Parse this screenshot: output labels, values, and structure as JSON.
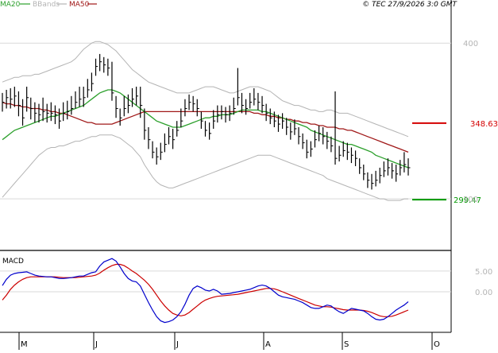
{
  "header": {
    "legend": [
      {
        "label": "MA20",
        "color": "#2ca02c"
      },
      {
        "label": "BBands",
        "color": "#b4b4b4"
      },
      {
        "label": "MA50",
        "color": "#a01818"
      }
    ],
    "copyright": "© TEC 27/9/2026 3:0 GMT"
  },
  "price_panel": {
    "y_ticks": [
      {
        "value": 400,
        "label": "400"
      },
      {
        "value": 300,
        "label": "300"
      }
    ],
    "levels": [
      {
        "value": 348.63,
        "label": "348.63",
        "color": "#d40000"
      },
      {
        "value": 299.47,
        "label": "299.47",
        "color": "#009900"
      }
    ]
  },
  "macd_panel": {
    "label": "MACD",
    "y_ticks": [
      {
        "value": 5,
        "label": "5.00"
      },
      {
        "value": 0,
        "label": "0.00"
      }
    ]
  },
  "x_axis": {
    "months": [
      "M",
      "J",
      "J",
      "A",
      "S",
      "O"
    ]
  },
  "chart_data": {
    "type": "line",
    "title": "",
    "xlabel": "",
    "ylabel": "",
    "price_ylim": [
      272,
      420
    ],
    "macd_ylim": [
      -9,
      9
    ],
    "months": [
      "M",
      "J",
      "J",
      "A",
      "S",
      "O"
    ],
    "price": [
      {
        "close": 362,
        "high": 368,
        "low": 356
      },
      {
        "close": 365,
        "high": 370,
        "low": 358
      },
      {
        "close": 364,
        "high": 371,
        "low": 358
      },
      {
        "close": 366,
        "high": 372,
        "low": 359
      },
      {
        "close": 360,
        "high": 369,
        "low": 353
      },
      {
        "close": 352,
        "high": 364,
        "low": 347
      },
      {
        "close": 365,
        "high": 372,
        "low": 356
      },
      {
        "close": 358,
        "high": 365,
        "low": 351
      },
      {
        "close": 355,
        "high": 362,
        "low": 349
      },
      {
        "close": 354,
        "high": 361,
        "low": 349
      },
      {
        "close": 356,
        "high": 365,
        "low": 350
      },
      {
        "close": 355,
        "high": 361,
        "low": 349
      },
      {
        "close": 355,
        "high": 362,
        "low": 350
      },
      {
        "close": 354,
        "high": 360,
        "low": 348
      },
      {
        "close": 350,
        "high": 358,
        "low": 345
      },
      {
        "close": 355,
        "high": 362,
        "low": 350
      },
      {
        "close": 356,
        "high": 363,
        "low": 351
      },
      {
        "close": 358,
        "high": 366,
        "low": 354
      },
      {
        "close": 362,
        "high": 369,
        "low": 358
      },
      {
        "close": 364,
        "high": 372,
        "low": 359
      },
      {
        "close": 365,
        "high": 372,
        "low": 359
      },
      {
        "close": 370,
        "high": 377,
        "low": 365
      },
      {
        "close": 374,
        "high": 381,
        "low": 369
      },
      {
        "close": 385,
        "high": 390,
        "low": 379
      },
      {
        "close": 388,
        "high": 393,
        "low": 382
      },
      {
        "close": 386,
        "high": 391,
        "low": 381
      },
      {
        "close": 384,
        "high": 390,
        "low": 379
      },
      {
        "close": 368,
        "high": 388,
        "low": 363
      },
      {
        "close": 358,
        "high": 366,
        "low": 352
      },
      {
        "close": 352,
        "high": 358,
        "low": 347
      },
      {
        "close": 358,
        "high": 366,
        "low": 353
      },
      {
        "close": 360,
        "high": 367,
        "low": 355
      },
      {
        "close": 364,
        "high": 371,
        "low": 359
      },
      {
        "close": 366,
        "high": 372,
        "low": 360
      },
      {
        "close": 360,
        "high": 372,
        "low": 352
      },
      {
        "close": 344,
        "high": 358,
        "low": 338
      },
      {
        "close": 338,
        "high": 346,
        "low": 332
      },
      {
        "close": 330,
        "high": 337,
        "low": 326
      },
      {
        "close": 327,
        "high": 333,
        "low": 322
      },
      {
        "close": 330,
        "high": 336,
        "low": 325
      },
      {
        "close": 335,
        "high": 342,
        "low": 330
      },
      {
        "close": 340,
        "high": 346,
        "low": 335
      },
      {
        "close": 338,
        "high": 345,
        "low": 332
      },
      {
        "close": 344,
        "high": 350,
        "low": 340
      },
      {
        "close": 350,
        "high": 358,
        "low": 346
      },
      {
        "close": 358,
        "high": 364,
        "low": 353
      },
      {
        "close": 362,
        "high": 367,
        "low": 357
      },
      {
        "close": 361,
        "high": 366,
        "low": 356
      },
      {
        "close": 358,
        "high": 364,
        "low": 353
      },
      {
        "close": 350,
        "high": 356,
        "low": 345
      },
      {
        "close": 344,
        "high": 350,
        "low": 340
      },
      {
        "close": 342,
        "high": 349,
        "low": 338
      },
      {
        "close": 350,
        "high": 357,
        "low": 345
      },
      {
        "close": 354,
        "high": 360,
        "low": 349
      },
      {
        "close": 356,
        "high": 360,
        "low": 351
      },
      {
        "close": 354,
        "high": 359,
        "low": 349
      },
      {
        "close": 355,
        "high": 360,
        "low": 350
      },
      {
        "close": 358,
        "high": 365,
        "low": 354
      },
      {
        "close": 365,
        "high": 384,
        "low": 360
      },
      {
        "close": 360,
        "high": 368,
        "low": 355
      },
      {
        "close": 358,
        "high": 364,
        "low": 354
      },
      {
        "close": 362,
        "high": 368,
        "low": 358
      },
      {
        "close": 364,
        "high": 371,
        "low": 360
      },
      {
        "close": 362,
        "high": 368,
        "low": 357
      },
      {
        "close": 360,
        "high": 366,
        "low": 355
      },
      {
        "close": 355,
        "high": 361,
        "low": 350
      },
      {
        "close": 352,
        "high": 358,
        "low": 348
      },
      {
        "close": 350,
        "high": 356,
        "low": 346
      },
      {
        "close": 348,
        "high": 354,
        "low": 343
      },
      {
        "close": 350,
        "high": 355,
        "low": 345
      },
      {
        "close": 346,
        "high": 352,
        "low": 341
      },
      {
        "close": 343,
        "high": 349,
        "low": 338
      },
      {
        "close": 345,
        "high": 351,
        "low": 341
      },
      {
        "close": 340,
        "high": 346,
        "low": 335
      },
      {
        "close": 336,
        "high": 342,
        "low": 332
      },
      {
        "close": 330,
        "high": 338,
        "low": 326
      },
      {
        "close": 332,
        "high": 337,
        "low": 327
      },
      {
        "close": 338,
        "high": 344,
        "low": 333
      },
      {
        "close": 342,
        "high": 347,
        "low": 337
      },
      {
        "close": 340,
        "high": 346,
        "low": 335
      },
      {
        "close": 337,
        "high": 343,
        "low": 332
      },
      {
        "close": 334,
        "high": 340,
        "low": 330
      },
      {
        "close": 326,
        "high": 369,
        "low": 322
      },
      {
        "close": 328,
        "high": 334,
        "low": 324
      },
      {
        "close": 331,
        "high": 337,
        "low": 327
      },
      {
        "close": 330,
        "high": 336,
        "low": 325
      },
      {
        "close": 328,
        "high": 333,
        "low": 323
      },
      {
        "close": 326,
        "high": 331,
        "low": 321
      },
      {
        "close": 320,
        "high": 326,
        "low": 316
      },
      {
        "close": 316,
        "high": 322,
        "low": 312
      },
      {
        "close": 312,
        "high": 317,
        "low": 307
      },
      {
        "close": 310,
        "high": 316,
        "low": 306
      },
      {
        "close": 312,
        "high": 318,
        "low": 308
      },
      {
        "close": 315,
        "high": 320,
        "low": 310
      },
      {
        "close": 318,
        "high": 324,
        "low": 314
      },
      {
        "close": 320,
        "high": 326,
        "low": 315
      },
      {
        "close": 318,
        "high": 323,
        "low": 313
      },
      {
        "close": 316,
        "high": 322,
        "low": 311
      },
      {
        "close": 320,
        "high": 325,
        "low": 315
      },
      {
        "close": 322,
        "high": 330,
        "low": 317
      },
      {
        "close": 320,
        "high": 326,
        "low": 315
      }
    ],
    "series": [
      {
        "name": "MA20",
        "color": "#2ca02c",
        "values": [
          338,
          340,
          342,
          344,
          345,
          346,
          347,
          348,
          349,
          350,
          351,
          352,
          353,
          353,
          354,
          355,
          356,
          357,
          358,
          359,
          360,
          362,
          364,
          366,
          368,
          369,
          370,
          370,
          369,
          368,
          366,
          364,
          362,
          360,
          358,
          356,
          354,
          352,
          350,
          349,
          348,
          347,
          346,
          346,
          346,
          347,
          348,
          349,
          350,
          351,
          352,
          352,
          353,
          353,
          354,
          354,
          354,
          355,
          356,
          357,
          357,
          357,
          357,
          357,
          356,
          356,
          355,
          354,
          353,
          352,
          351,
          350,
          349,
          348,
          347,
          346,
          344,
          343,
          342,
          341,
          340,
          339,
          338,
          337,
          336,
          335,
          335,
          334,
          333,
          332,
          331,
          330,
          328,
          327,
          326,
          325,
          324,
          323,
          322,
          321,
          320
        ]
      },
      {
        "name": "MA50",
        "color": "#a01818",
        "values": [
          362,
          361,
          361,
          360,
          360,
          359,
          359,
          358,
          358,
          358,
          357,
          357,
          356,
          356,
          355,
          355,
          354,
          353,
          352,
          351,
          350,
          349,
          349,
          348,
          348,
          348,
          348,
          348,
          349,
          350,
          351,
          352,
          353,
          354,
          355,
          356,
          356,
          356,
          356,
          356,
          356,
          356,
          356,
          356,
          356,
          356,
          356,
          356,
          356,
          356,
          356,
          356,
          356,
          356,
          356,
          356,
          356,
          356,
          356,
          356,
          356,
          356,
          355,
          355,
          354,
          354,
          353,
          353,
          352,
          352,
          351,
          351,
          350,
          350,
          349,
          349,
          348,
          348,
          347,
          347,
          346,
          346,
          346,
          345,
          345,
          344,
          344,
          343,
          342,
          341,
          340,
          339,
          338,
          337,
          336,
          335,
          334,
          333,
          332,
          331,
          330
        ]
      },
      {
        "name": "BBands",
        "color": "#b4b4b4",
        "values_upper": [
          375,
          376,
          377,
          378,
          378,
          379,
          379,
          379,
          380,
          380,
          381,
          382,
          383,
          384,
          385,
          386,
          387,
          388,
          390,
          393,
          396,
          398,
          400,
          401,
          401,
          400,
          399,
          397,
          395,
          392,
          389,
          386,
          383,
          381,
          379,
          377,
          375,
          374,
          373,
          372,
          371,
          370,
          369,
          368,
          368,
          368,
          368,
          369,
          370,
          371,
          372,
          372,
          372,
          371,
          370,
          369,
          368,
          368,
          369,
          370,
          371,
          372,
          372,
          372,
          371,
          370,
          369,
          367,
          365,
          363,
          362,
          361,
          360,
          360,
          359,
          358,
          357,
          357,
          356,
          356,
          357,
          357,
          356,
          355,
          355,
          355,
          354,
          353,
          352,
          351,
          350,
          349,
          348,
          347,
          346,
          345,
          344,
          343,
          342,
          341,
          340
        ],
        "values_lower": [
          301,
          304,
          307,
          310,
          313,
          316,
          319,
          322,
          325,
          328,
          330,
          332,
          333,
          333,
          334,
          334,
          335,
          336,
          337,
          337,
          338,
          339,
          340,
          340,
          341,
          341,
          341,
          341,
          340,
          339,
          337,
          335,
          333,
          330,
          327,
          322,
          318,
          314,
          311,
          309,
          308,
          307,
          307,
          308,
          309,
          310,
          311,
          312,
          313,
          314,
          315,
          316,
          317,
          318,
          319,
          320,
          321,
          322,
          323,
          324,
          325,
          326,
          327,
          328,
          328,
          328,
          328,
          327,
          326,
          325,
          324,
          323,
          322,
          321,
          320,
          319,
          318,
          317,
          316,
          315,
          313,
          312,
          311,
          310,
          309,
          308,
          307,
          306,
          305,
          304,
          303,
          302,
          301,
          300,
          300,
          299,
          299,
          299,
          299,
          300,
          300
        ]
      },
      {
        "name": "MACD",
        "color": "#0000cc",
        "values": [
          1.5,
          3.0,
          4.0,
          4.4,
          4.6,
          4.7,
          4.8,
          4.4,
          4.0,
          3.8,
          3.7,
          3.6,
          3.6,
          3.4,
          3.2,
          3.2,
          3.3,
          3.4,
          3.6,
          3.8,
          3.8,
          4.2,
          4.6,
          4.8,
          6.2,
          7.2,
          7.6,
          8.0,
          7.4,
          6.0,
          4.4,
          3.2,
          2.6,
          2.4,
          1.4,
          -0.6,
          -2.6,
          -4.4,
          -6.0,
          -7.0,
          -7.4,
          -7.2,
          -6.8,
          -6.0,
          -4.8,
          -3.0,
          -0.8,
          0.8,
          1.4,
          1.0,
          0.4,
          0.2,
          0.6,
          0.2,
          -0.6,
          -0.5,
          -0.4,
          -0.2,
          0.0,
          0.2,
          0.4,
          0.6,
          1.0,
          1.4,
          1.6,
          1.4,
          0.8,
          0.0,
          -0.8,
          -1.2,
          -1.4,
          -1.6,
          -1.8,
          -2.2,
          -2.6,
          -3.2,
          -3.8,
          -4.0,
          -4.0,
          -3.6,
          -3.2,
          -3.4,
          -4.2,
          -4.8,
          -5.2,
          -4.6,
          -4.0,
          -4.2,
          -4.4,
          -4.6,
          -5.2,
          -6.0,
          -6.6,
          -6.8,
          -6.6,
          -6.0,
          -5.2,
          -4.4,
          -3.8,
          -3.2,
          -2.4
        ]
      },
      {
        "name": "Signal",
        "color": "#cc0000",
        "values": [
          -2.0,
          -0.8,
          0.6,
          1.6,
          2.4,
          3.0,
          3.4,
          3.6,
          3.6,
          3.6,
          3.6,
          3.6,
          3.6,
          3.6,
          3.5,
          3.4,
          3.4,
          3.4,
          3.4,
          3.5,
          3.6,
          3.7,
          3.8,
          4.0,
          4.5,
          5.2,
          5.8,
          6.3,
          6.6,
          6.6,
          6.3,
          5.7,
          5.0,
          4.4,
          3.6,
          2.8,
          1.8,
          0.6,
          -0.8,
          -2.2,
          -3.4,
          -4.4,
          -5.2,
          -5.6,
          -5.8,
          -5.6,
          -5.0,
          -4.2,
          -3.4,
          -2.6,
          -2.0,
          -1.6,
          -1.3,
          -1.1,
          -1.0,
          -0.9,
          -0.8,
          -0.7,
          -0.6,
          -0.4,
          -0.2,
          0.0,
          0.2,
          0.4,
          0.6,
          0.8,
          0.8,
          0.7,
          0.4,
          0.0,
          -0.4,
          -0.8,
          -1.2,
          -1.6,
          -2.0,
          -2.4,
          -2.8,
          -3.2,
          -3.4,
          -3.6,
          -3.6,
          -3.7,
          -3.9,
          -4.1,
          -4.3,
          -4.4,
          -4.4,
          -4.4,
          -4.4,
          -4.5,
          -4.7,
          -5.0,
          -5.4,
          -5.8,
          -6.0,
          -6.0,
          -5.9,
          -5.6,
          -5.2,
          -4.8,
          -4.4
        ]
      }
    ]
  }
}
